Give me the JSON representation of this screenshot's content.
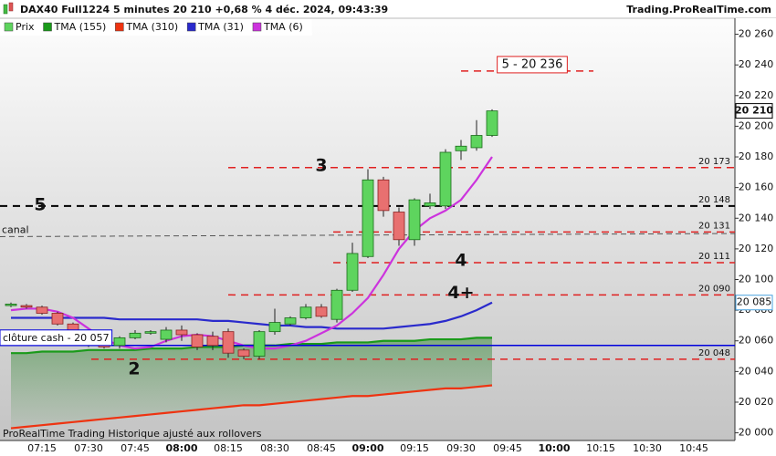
{
  "chart_data": {
    "type": "candlestick",
    "title": "DAX40 Full1224 5 minutes 20 210 +0,68 % 4 déc. 2024, 09:43:39",
    "source": "Trading.ProRealTime.com",
    "footer": "ProRealTime Trading  Historique ajusté aux rollovers",
    "categories": [
      null,
      null,
      "07:15",
      null,
      null,
      "07:30",
      null,
      null,
      "07:45",
      null,
      null,
      "08:00",
      null,
      null,
      "08:15",
      null,
      null,
      "08:30",
      null,
      null,
      "08:45",
      null,
      null,
      "09:00",
      null,
      null,
      "09:15",
      null,
      null,
      "09:30",
      null,
      null,
      "09:45",
      null,
      null,
      "10:00",
      null,
      null,
      "10:15",
      null,
      null,
      "10:30",
      null,
      null,
      "10:45",
      null
    ],
    "ylim": [
      19995,
      20270
    ],
    "yticks": [
      {
        "value": 20000,
        "label": "20 000"
      },
      {
        "value": 20020,
        "label": "20 020"
      },
      {
        "value": 20040,
        "label": "20 040"
      },
      {
        "value": 20060,
        "label": "20 060"
      },
      {
        "value": 20080,
        "label": "20 080"
      },
      {
        "value": 20100,
        "label": "20 100"
      },
      {
        "value": 20120,
        "label": "20 120"
      },
      {
        "value": 20140,
        "label": "20 140"
      },
      {
        "value": 20160,
        "label": "20 160"
      },
      {
        "value": 20180,
        "label": "20 180"
      },
      {
        "value": 20200,
        "label": "20 200"
      },
      {
        "value": 20220,
        "label": "20 220"
      },
      {
        "value": 20240,
        "label": "20 240"
      },
      {
        "value": 20260,
        "label": "20 260"
      }
    ],
    "candles": {
      "name": "Prix",
      "up_color": "#5ed45e",
      "down_color": "#e87070",
      "open": [
        20083,
        20083,
        20082,
        20078,
        20071,
        20064,
        20058,
        20057,
        20062,
        20065,
        20061,
        20067,
        20064,
        20063,
        20066,
        20054,
        20050,
        20066,
        20071,
        20075,
        20082,
        20074,
        20093,
        20115,
        20165,
        20144,
        20126,
        20148,
        20148,
        20184,
        20186,
        20194,
        null,
        null,
        null,
        null,
        null,
        null,
        null,
        null,
        null,
        null,
        null,
        null,
        null,
        null
      ],
      "high": [
        20085,
        20084,
        20083,
        20079,
        20072,
        20066,
        20059,
        20063,
        20067,
        20067,
        20069,
        20070,
        20065,
        20066,
        20068,
        20055,
        20067,
        20081,
        20076,
        20084,
        20084,
        20094,
        20124,
        20172,
        20167,
        20147,
        20153,
        20156,
        20185,
        20191,
        20204,
        20211,
        null,
        null,
        null,
        null,
        null,
        null,
        null,
        null,
        null,
        null,
        null,
        null,
        null,
        null
      ],
      "low": [
        20082,
        20081,
        20077,
        20070,
        20064,
        20056,
        20055,
        20055,
        20061,
        20064,
        20059,
        20060,
        20054,
        20054,
        20049,
        20048,
        20048,
        20064,
        20070,
        20074,
        20075,
        20072,
        20092,
        20114,
        20141,
        20122,
        20122,
        20146,
        20146,
        20178,
        20184,
        20193,
        null,
        null,
        null,
        null,
        null,
        null,
        null,
        null,
        null,
        null,
        null,
        null,
        null,
        null
      ],
      "close": [
        20084,
        20082,
        20078,
        20071,
        20065,
        20058,
        20056,
        20062,
        20065,
        20066,
        20067,
        20064,
        20056,
        20057,
        20052,
        20050,
        20066,
        20072,
        20075,
        20082,
        20076,
        20093,
        20117,
        20165,
        20145,
        20126,
        20152,
        20150,
        20183,
        20187,
        20194,
        20210,
        null,
        null,
        null,
        null,
        null,
        null,
        null,
        null,
        null,
        null,
        null,
        null,
        null,
        null
      ]
    },
    "series": [
      {
        "name": "TMA (155)",
        "color": "#1a9a1a",
        "values": [
          20052,
          20052,
          20053,
          20053,
          20053,
          20054,
          20054,
          20054,
          20054,
          20055,
          20055,
          20055,
          20056,
          20056,
          20056,
          20057,
          20057,
          20057,
          20058,
          20058,
          20058,
          20059,
          20059,
          20059,
          20060,
          20060,
          20060,
          20061,
          20061,
          20061,
          20062,
          20062,
          null,
          null,
          null,
          null,
          null,
          null,
          null,
          null,
          null,
          null,
          null,
          null,
          null,
          null
        ]
      },
      {
        "name": "TMA (310)",
        "color": "#ee3311",
        "values": [
          20003,
          20004,
          20005,
          20006,
          20007,
          20008,
          20009,
          20010,
          20011,
          20012,
          20013,
          20014,
          20015,
          20016,
          20017,
          20018,
          20018,
          20019,
          20020,
          20021,
          20022,
          20023,
          20024,
          20024,
          20025,
          20026,
          20027,
          20028,
          20029,
          20029,
          20030,
          20031,
          null,
          null,
          null,
          null,
          null,
          null,
          null,
          null,
          null,
          null,
          null,
          null,
          null,
          null
        ]
      },
      {
        "name": "TMA (31)",
        "color": "#2a2acc",
        "last_label": "20 085",
        "values": [
          20075,
          20075,
          20075,
          20075,
          20075,
          20075,
          20075,
          20074,
          20074,
          20074,
          20074,
          20074,
          20074,
          20073,
          20073,
          20072,
          20071,
          20070,
          20070,
          20069,
          20069,
          20068,
          20068,
          20068,
          20068,
          20069,
          20070,
          20071,
          20073,
          20076,
          20080,
          20085,
          null,
          null,
          null,
          null,
          null,
          null,
          null,
          null,
          null,
          null,
          null,
          null,
          null,
          null
        ]
      },
      {
        "name": "TMA (6)",
        "color": "#cc33dd",
        "values": [
          20080,
          20081,
          20081,
          20079,
          20075,
          20068,
          20061,
          20057,
          20055,
          20056,
          20060,
          20063,
          20064,
          20063,
          20060,
          20057,
          20055,
          20055,
          20057,
          20060,
          20065,
          20070,
          20078,
          20088,
          20103,
          20120,
          20132,
          20140,
          20145,
          20152,
          20165,
          20180,
          null,
          null,
          null,
          null,
          null,
          null,
          null,
          null,
          null,
          null,
          null,
          null,
          null,
          null
        ]
      }
    ],
    "last_price": {
      "value": 20210,
      "label": "20 210"
    },
    "levels": [
      {
        "value": 20236,
        "label": "5 -  20 236",
        "color": "#e02020"
      },
      {
        "value": 20173,
        "label": "20 173",
        "note": "3",
        "color": "#e02020"
      },
      {
        "value": 20148,
        "label": "20 148",
        "note": "5",
        "color": "#000000"
      },
      {
        "value": 20131,
        "label": "20 131",
        "color": "#e02020"
      },
      {
        "value": 20111,
        "label": "20 111",
        "note": "4",
        "color": "#e02020"
      },
      {
        "value": 20090,
        "label": "20 090",
        "note": "4+",
        "color": "#e02020"
      },
      {
        "value": 20048,
        "label": "20 048",
        "note": "2",
        "color": "#e02020"
      }
    ],
    "trendline": {
      "label": "canal",
      "start": 20128,
      "end": 20130,
      "color": "#555555"
    },
    "close_line": {
      "value": 20057,
      "label": "clôture cash -  20 057",
      "color": "#0000dd"
    }
  }
}
